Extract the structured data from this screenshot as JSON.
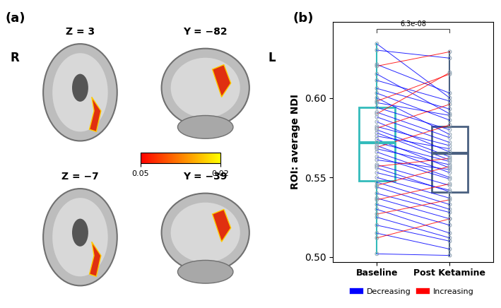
{
  "panel_a": {
    "label": "(a)",
    "side_labels": [
      "R",
      "L"
    ],
    "views": [
      {
        "title": "Z = 3",
        "kind": "axial"
      },
      {
        "title": "Y = −82",
        "kind": "coronal"
      },
      {
        "title": "Z = −7",
        "kind": "axial"
      },
      {
        "title": "Y = −39",
        "kind": "coronal"
      }
    ],
    "colorbar": {
      "range": [
        0.05,
        0.02
      ],
      "ticks": [
        0.05,
        0.02
      ]
    }
  },
  "chart_data": {
    "type": "box",
    "panel_label": "(b)",
    "y_label": "ROI: average NDI",
    "categories": [
      "Baseline",
      "Post Ketamine"
    ],
    "boxes": [
      {
        "category": "Baseline",
        "color": "#33bbbb",
        "whislo": 0.502,
        "q1": 0.548,
        "median": 0.572,
        "q3": 0.594,
        "whishi": 0.634
      },
      {
        "category": "Post Ketamine",
        "color": "#4a6080",
        "whislo": 0.501,
        "q1": 0.541,
        "median": 0.565,
        "q3": 0.582,
        "whishi": 0.629
      }
    ],
    "annotations": [
      {
        "text": "6.3e-08",
        "between": [
          "Baseline",
          "Post Ketamine"
        ]
      }
    ],
    "ylim": [
      0.497,
      0.648
    ],
    "yticks": [
      {
        "value": 0.5,
        "label": "0.50"
      },
      {
        "value": 0.55,
        "label": "0.55"
      },
      {
        "value": 0.6,
        "label": "0.60"
      }
    ],
    "legend": "bottom",
    "series": [
      {
        "name": "Decreasing",
        "color": "#0000ff",
        "baseline": [
          0.634,
          0.63,
          0.621,
          0.615,
          0.611,
          0.606,
          0.603,
          0.6,
          0.597,
          0.594,
          0.591,
          0.588,
          0.585,
          0.582,
          0.58,
          0.578,
          0.576,
          0.574,
          0.572,
          0.57,
          0.568,
          0.566,
          0.563,
          0.561,
          0.558,
          0.556,
          0.553,
          0.55,
          0.547,
          0.544,
          0.54,
          0.537,
          0.533,
          0.53,
          0.525,
          0.52,
          0.515,
          0.502
        ],
        "post": [
          0.6,
          0.625,
          0.603,
          0.59,
          0.598,
          0.593,
          0.586,
          0.577,
          0.589,
          0.58,
          0.575,
          0.572,
          0.566,
          0.57,
          0.563,
          0.561,
          0.568,
          0.556,
          0.56,
          0.553,
          0.558,
          0.55,
          0.549,
          0.555,
          0.545,
          0.541,
          0.542,
          0.537,
          0.533,
          0.53,
          0.528,
          0.524,
          0.52,
          0.515,
          0.512,
          0.51,
          0.505,
          0.501
        ]
      },
      {
        "name": "Increasing",
        "color": "#ff0000",
        "baseline": [
          0.62,
          0.598,
          0.59,
          0.581,
          0.569,
          0.557,
          0.545,
          0.536,
          0.527,
          0.512
        ],
        "post": [
          0.629,
          0.615,
          0.616,
          0.596,
          0.583,
          0.562,
          0.557,
          0.546,
          0.536,
          0.524
        ]
      }
    ]
  }
}
